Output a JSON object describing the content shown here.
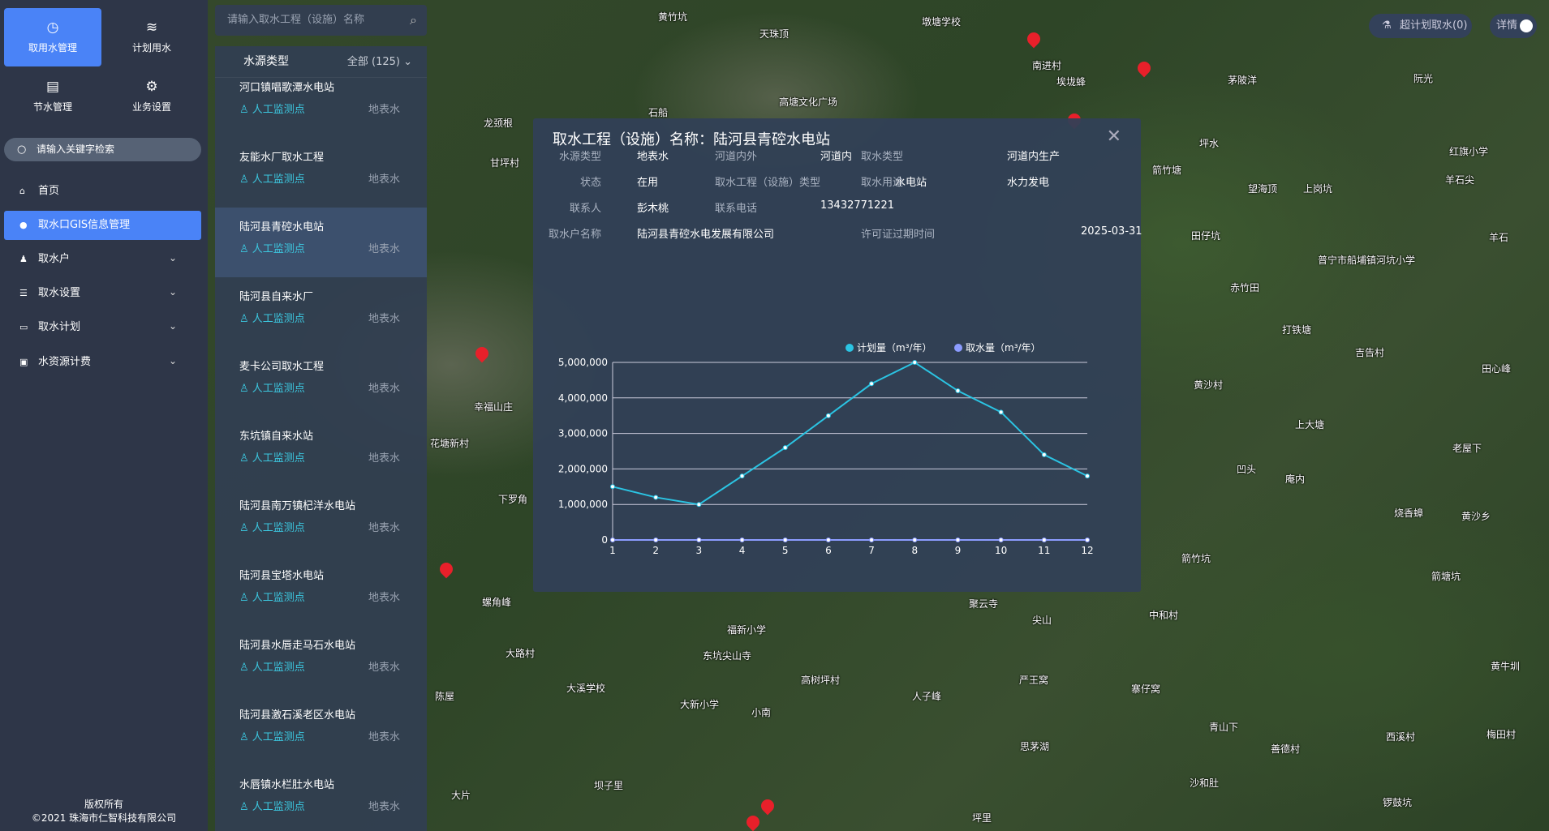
{
  "sidebar": {
    "top_buttons": [
      {
        "label": "取用水管理",
        "icon": "gauge-icon",
        "active": true
      },
      {
        "label": "计划用水",
        "icon": "waves-icon"
      },
      {
        "label": "节水管理",
        "icon": "document-icon"
      },
      {
        "label": "业务设置",
        "icon": "gear-icon"
      }
    ],
    "search_placeholder": "请输入关键字检索",
    "menu": [
      {
        "label": "首页",
        "icon": "home-icon"
      },
      {
        "label": "取水口GIS信息管理",
        "icon": "location-icon",
        "active": true
      },
      {
        "label": "取水户",
        "icon": "user-icon",
        "expandable": true
      },
      {
        "label": "取水设置",
        "icon": "database-icon",
        "expandable": true
      },
      {
        "label": "取水计划",
        "icon": "calendar-icon",
        "expandable": true
      },
      {
        "label": "水资源计费",
        "icon": "chart-icon",
        "expandable": true
      }
    ],
    "footer": [
      "版权所有",
      "©2021 珠海市仁智科技有限公司"
    ]
  },
  "list": {
    "search_placeholder": "请输入取水工程（设施）名称",
    "filter_label": "水源类型",
    "filter_value": "全部 (125)",
    "items": [
      {
        "name": "河口镇唱歌潭水电站",
        "monitor": "人工监测点",
        "water": "地表水"
      },
      {
        "name": "友能水厂取水工程",
        "monitor": "人工监测点",
        "water": "地表水"
      },
      {
        "name": "陆河县青硿水电站",
        "monitor": "人工监测点",
        "water": "地表水",
        "selected": true
      },
      {
        "name": "陆河县自来水厂",
        "monitor": "人工监测点",
        "water": "地表水"
      },
      {
        "name": "麦卡公司取水工程",
        "monitor": "人工监测点",
        "water": "地表水"
      },
      {
        "name": "东坑镇自来水站",
        "monitor": "人工监测点",
        "water": "地表水"
      },
      {
        "name": "陆河县南万镇杞洋水电站",
        "monitor": "人工监测点",
        "water": "地表水"
      },
      {
        "name": "陆河县宝塔水电站",
        "monitor": "人工监测点",
        "water": "地表水"
      },
      {
        "name": "陆河县水唇走马石水电站",
        "monitor": "人工监测点",
        "water": "地表水"
      },
      {
        "name": "陆河县激石溪老区水电站",
        "monitor": "人工监测点",
        "water": "地表水"
      },
      {
        "name": "水唇镇水栏肚水电站",
        "monitor": "人工监测点",
        "water": "地表水"
      }
    ]
  },
  "topright": {
    "over_plan": "超计划取水(0)",
    "detail": "详情",
    "detail_on": true
  },
  "dialog": {
    "title": "取水工程（设施）名称：陆河县青硿水电站",
    "fields": [
      {
        "label": "水源类型",
        "value": "地表水"
      },
      {
        "label": "河道内外",
        "value": "河道内"
      },
      {
        "label": "取水类型",
        "value": "河道内生产"
      },
      {
        "label": "状态",
        "value": "在用"
      },
      {
        "label": "取水工程（设施）类型",
        "value": "水电站"
      },
      {
        "label": "取水用途",
        "value": "水力发电"
      },
      {
        "label": "联系人",
        "value": "彭木桃"
      },
      {
        "label": "联系电话",
        "value": "13432771221"
      },
      {
        "label": "取水户名称",
        "value": "陆河县青硿水电发展有限公司"
      },
      {
        "label": "许可证过期时间",
        "value": "2025-03-31"
      }
    ]
  },
  "chart_data": {
    "type": "line",
    "x": [
      1,
      2,
      3,
      4,
      5,
      6,
      7,
      8,
      9,
      10,
      11,
      12
    ],
    "ylim": [
      0,
      5000000
    ],
    "yticks": [
      "0",
      "1,000,000",
      "2,000,000",
      "3,000,000",
      "4,000,000",
      "5,000,000"
    ],
    "grid": true,
    "legend_position": "top-right",
    "series": [
      {
        "name": "计划量（m³/年）",
        "color": "#2bc4e3",
        "values": [
          1500000,
          1200000,
          1000000,
          1800000,
          2600000,
          3500000,
          4400000,
          5000000,
          4200000,
          3600000,
          2400000,
          1800000
        ]
      },
      {
        "name": "取水量（m³/年）",
        "color": "#8c9cff",
        "values": [
          0,
          0,
          0,
          0,
          0,
          0,
          0,
          0,
          0,
          0,
          0,
          0
        ]
      }
    ]
  },
  "map": {
    "labels": [
      "黄竹坑",
      "天珠顶",
      "墩塘学校",
      "南进村",
      "埃垅蜂",
      "茅陂洋",
      "阮光",
      "石船",
      "龙颈根",
      "甘坪村",
      "高塘文化广场",
      "坪水",
      "箭竹塘",
      "望海顶",
      "上岗坑",
      "红旗小学",
      "羊石尖",
      "田仔坑",
      "赤竹田",
      "羊石",
      "普宁市船埔镇河坑小学",
      "打铁塘",
      "吉告村",
      "黄沙村",
      "田心峰",
      "上大塘",
      "老屋下",
      "凹头",
      "庵内",
      "烧香蟑",
      "黄沙乡",
      "箭竹坑",
      "箭塘坑",
      "中和村",
      "尖山",
      "聚云寺",
      "严王窝",
      "寨仔窝",
      "大溪学校",
      "大新小学",
      "福新小学",
      "高树坪村",
      "人子峰",
      "螺角峰",
      "幸福山庄",
      "花塘新村",
      "下罗角",
      "大路村",
      "陈屋",
      "小南",
      "东坑尖山寺",
      "思茅湖",
      "青山下",
      "善德村",
      "西溪村",
      "梅田村",
      "沙和肚",
      "锣鼓坑",
      "大片",
      "坝子里",
      "坪里",
      "黄牛圳"
    ]
  }
}
